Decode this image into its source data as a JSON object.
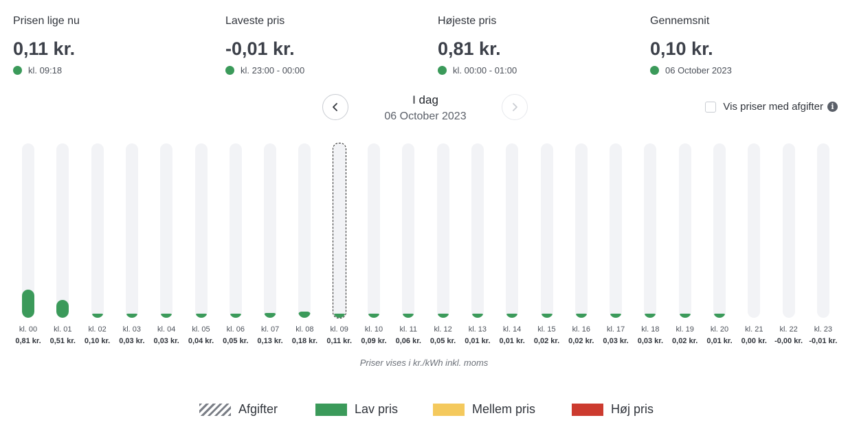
{
  "stats": [
    {
      "label": "Prisen lige nu",
      "value": "0,11 kr.",
      "sub": "kl. 09:18"
    },
    {
      "label": "Laveste pris",
      "value": "-0,01 kr.",
      "sub": "kl. 23:00 - 00:00"
    },
    {
      "label": "Højeste pris",
      "value": "0,81 kr.",
      "sub": "kl. 00:00 - 01:00"
    },
    {
      "label": "Gennemsnit",
      "value": "0,10 kr.",
      "sub": "06 October 2023"
    }
  ],
  "status_color": "#3b9a5a",
  "nav": {
    "title": "I dag",
    "date": "06 October 2023"
  },
  "fees_toggle": {
    "label": "Vis priser med afgifter",
    "checked": false
  },
  "chart_data": {
    "type": "bar",
    "categories": [
      "kl. 00",
      "kl. 01",
      "kl. 02",
      "kl. 03",
      "kl. 04",
      "kl. 05",
      "kl. 06",
      "kl. 07",
      "kl. 08",
      "kl. 09",
      "kl. 10",
      "kl. 11",
      "kl. 12",
      "kl. 13",
      "kl. 14",
      "kl. 15",
      "kl. 16",
      "kl. 17",
      "kl. 18",
      "kl. 19",
      "kl. 20",
      "kl. 21",
      "kl. 22",
      "kl. 23"
    ],
    "values": [
      0.81,
      0.51,
      0.1,
      0.03,
      0.03,
      0.04,
      0.05,
      0.13,
      0.18,
      0.11,
      0.09,
      0.06,
      0.05,
      0.01,
      0.01,
      0.02,
      0.02,
      0.03,
      0.03,
      0.02,
      0.01,
      0.0,
      -0.0,
      -0.01
    ],
    "value_labels": [
      "0,81 kr.",
      "0,51 kr.",
      "0,10 kr.",
      "0,03 kr.",
      "0,03 kr.",
      "0,04 kr.",
      "0,05 kr.",
      "0,13 kr.",
      "0,18 kr.",
      "0,11 kr.",
      "0,09 kr.",
      "0,06 kr.",
      "0,05 kr.",
      "0,01 kr.",
      "0,01 kr.",
      "0,02 kr.",
      "0,02 kr.",
      "0,03 kr.",
      "0,03 kr.",
      "0,02 kr.",
      "0,01 kr.",
      "0,00 kr.",
      "-0,00 kr.",
      "-0,01 kr."
    ],
    "selected_index": 9,
    "ylim": [
      0,
      5.0
    ],
    "bar_color": "#3b9a5a",
    "note": "Priser vises i kr./kWh inkl. moms"
  },
  "legend": [
    {
      "label": "Afgifter",
      "kind": "hatch",
      "color": "#7a7e86"
    },
    {
      "label": "Lav pris",
      "kind": "solid",
      "color": "#3b9a5a"
    },
    {
      "label": "Mellem pris",
      "kind": "solid",
      "color": "#f4c95d"
    },
    {
      "label": "Høj pris",
      "kind": "solid",
      "color": "#cc3b2f"
    }
  ]
}
